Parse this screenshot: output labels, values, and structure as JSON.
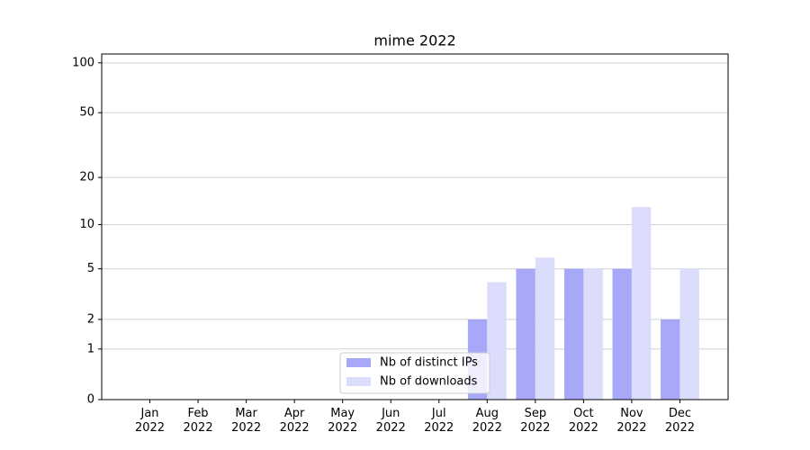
{
  "chart_data": {
    "type": "bar",
    "title": "mime 2022",
    "categories": [
      "Jan\n2022",
      "Feb\n2022",
      "Mar\n2022",
      "Apr\n2022",
      "May\n2022",
      "Jun\n2022",
      "Jul\n2022",
      "Aug\n2022",
      "Sep\n2022",
      "Oct\n2022",
      "Nov\n2022",
      "Dec\n2022"
    ],
    "series": [
      {
        "name": "Nb of distinct IPs",
        "color": "#a8a8f8",
        "values": [
          0,
          0,
          0,
          0,
          0,
          0,
          0,
          2,
          5,
          5,
          5,
          2
        ]
      },
      {
        "name": "Nb of downloads",
        "color": "#dcdcfc",
        "values": [
          0,
          0,
          0,
          0,
          0,
          0,
          0,
          4,
          6,
          5,
          13,
          5
        ]
      }
    ],
    "yscale": "log1p",
    "ylim": [
      0,
      113
    ],
    "yticks": [
      0,
      1,
      2,
      5,
      10,
      20,
      50,
      100
    ],
    "grid": true,
    "legend": "lower center"
  }
}
